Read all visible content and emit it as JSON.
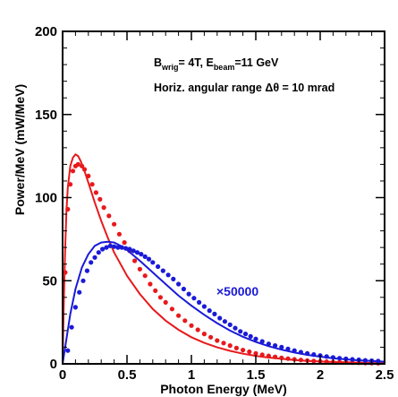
{
  "chart_data": {
    "type": "scatter",
    "xlabel": "Photon Energy (MeV)",
    "ylabel": "Power/MeV (mW/MeV)",
    "xlim": [
      0,
      2.5
    ],
    "ylim": [
      0,
      200
    ],
    "x_ticks": [
      "0",
      "0.5",
      "1",
      "1.5",
      "2",
      "2.5"
    ],
    "y_ticks": [
      "0",
      "50",
      "100",
      "150",
      "200"
    ],
    "grid": false,
    "annotations": {
      "line1": {
        "b_main": "B",
        "b_sub": "wrig",
        "b_rest": "= 4T, E",
        "e_sub": "beam",
        "e_rest": "=11 GeV"
      },
      "line2": "Horiz. angular range Δθ = 10 mrad",
      "multiplier": "×50000"
    },
    "colors": {
      "red": "#e8191c",
      "blue": "#1a1ad8"
    },
    "series": [
      {
        "color": "#e8191c",
        "kind": "line",
        "x": [
          0,
          0.01,
          0.02,
          0.03,
          0.04,
          0.06,
          0.08,
          0.1,
          0.12,
          0.14,
          0.17,
          0.2,
          0.25,
          0.3,
          0.35,
          0.4,
          0.5,
          0.6,
          0.7,
          0.8,
          0.9,
          1.0,
          1.1,
          1.2,
          1.3,
          1.4,
          1.5,
          1.6,
          1.7,
          1.8,
          1.9,
          2.0,
          2.1,
          2.2,
          2.3,
          2.4,
          2.5
        ],
        "y": [
          0,
          38,
          70,
          92,
          106,
          119,
          124,
          126,
          125,
          122,
          116,
          109,
          97,
          86,
          76,
          67,
          53,
          42,
          33,
          26,
          20.5,
          16,
          12.6,
          9.9,
          7.8,
          6.1,
          4.8,
          3.8,
          3.0,
          2.3,
          1.8,
          1.4,
          1.1,
          0.9,
          0.7,
          0.55,
          0.42
        ]
      },
      {
        "color": "#e8191c",
        "kind": "points",
        "x": [
          0.02,
          0.04,
          0.06,
          0.08,
          0.1,
          0.12,
          0.15,
          0.17,
          0.2,
          0.23,
          0.26,
          0.29,
          0.32,
          0.36,
          0.4,
          0.44,
          0.48,
          0.52,
          0.56,
          0.6,
          0.64,
          0.68,
          0.72,
          0.76,
          0.8,
          0.85,
          0.9,
          0.95,
          1.0,
          1.05,
          1.1,
          1.15,
          1.2,
          1.25,
          1.3,
          1.35,
          1.4,
          1.45,
          1.5,
          1.55,
          1.6,
          1.65,
          1.7,
          1.75,
          1.8,
          1.85,
          1.9,
          1.95,
          2.0,
          2.05,
          2.1,
          2.15,
          2.2,
          2.25,
          2.3,
          2.35,
          2.4,
          2.45
        ],
        "y": [
          55,
          93,
          108,
          116,
          119,
          120,
          119,
          117,
          113,
          108,
          103,
          99,
          94,
          89,
          84,
          78,
          73,
          68,
          62,
          57,
          53,
          48,
          44,
          40,
          37,
          33,
          29,
          26,
          23,
          20.5,
          18,
          16,
          14,
          12.5,
          11,
          9.5,
          8.3,
          7.3,
          6.3,
          5.5,
          4.8,
          4.2,
          3.6,
          3.1,
          2.7,
          2.3,
          2.0,
          1.7,
          1.5,
          1.3,
          1.1,
          1.0,
          0.85,
          0.75,
          0.65,
          0.55,
          0.5,
          0.4
        ]
      },
      {
        "color": "#1a1ad8",
        "kind": "line",
        "x": [
          0,
          0.03,
          0.06,
          0.1,
          0.15,
          0.2,
          0.25,
          0.3,
          0.35,
          0.4,
          0.45,
          0.5,
          0.6,
          0.7,
          0.8,
          0.9,
          1.0,
          1.1,
          1.2,
          1.3,
          1.4,
          1.5,
          1.6,
          1.7,
          1.8,
          1.9,
          2.0,
          2.1,
          2.2,
          2.3,
          2.4,
          2.5
        ],
        "y": [
          0,
          15,
          30,
          45,
          58,
          66,
          71,
          73,
          73.5,
          73,
          71,
          68.5,
          62,
          55,
          48,
          41,
          35,
          29.5,
          24.5,
          20,
          16.3,
          13.2,
          10.6,
          8.5,
          6.8,
          5.4,
          4.3,
          3.4,
          2.7,
          2.1,
          1.7,
          1.3
        ]
      },
      {
        "color": "#1a1ad8",
        "kind": "points",
        "x": [
          0.04,
          0.07,
          0.1,
          0.13,
          0.16,
          0.19,
          0.22,
          0.25,
          0.28,
          0.31,
          0.34,
          0.37,
          0.4,
          0.43,
          0.46,
          0.49,
          0.52,
          0.55,
          0.58,
          0.61,
          0.64,
          0.67,
          0.7,
          0.74,
          0.78,
          0.82,
          0.86,
          0.9,
          0.94,
          0.98,
          1.02,
          1.06,
          1.1,
          1.14,
          1.18,
          1.22,
          1.26,
          1.3,
          1.34,
          1.38,
          1.42,
          1.46,
          1.5,
          1.55,
          1.6,
          1.65,
          1.7,
          1.75,
          1.8,
          1.85,
          1.9,
          1.95,
          2.0,
          2.05,
          2.1,
          2.15,
          2.2,
          2.25,
          2.3,
          2.35,
          2.4,
          2.45
        ],
        "y": [
          8,
          22,
          34,
          43,
          50,
          56,
          61,
          64,
          67,
          69,
          70,
          71,
          70.5,
          70,
          70,
          69.5,
          69,
          68,
          67,
          66,
          64.5,
          63,
          61,
          58.5,
          56,
          53.5,
          51,
          48,
          45,
          42,
          39.5,
          37,
          34.5,
          32,
          30,
          27.5,
          25.5,
          23.5,
          21.5,
          19.5,
          18,
          16.5,
          15,
          13.5,
          12,
          11,
          10,
          9,
          8,
          7,
          6.3,
          5.6,
          5,
          4.4,
          3.9,
          3.4,
          3,
          2.7,
          2.4,
          2.1,
          1.9,
          1.7
        ]
      }
    ]
  }
}
